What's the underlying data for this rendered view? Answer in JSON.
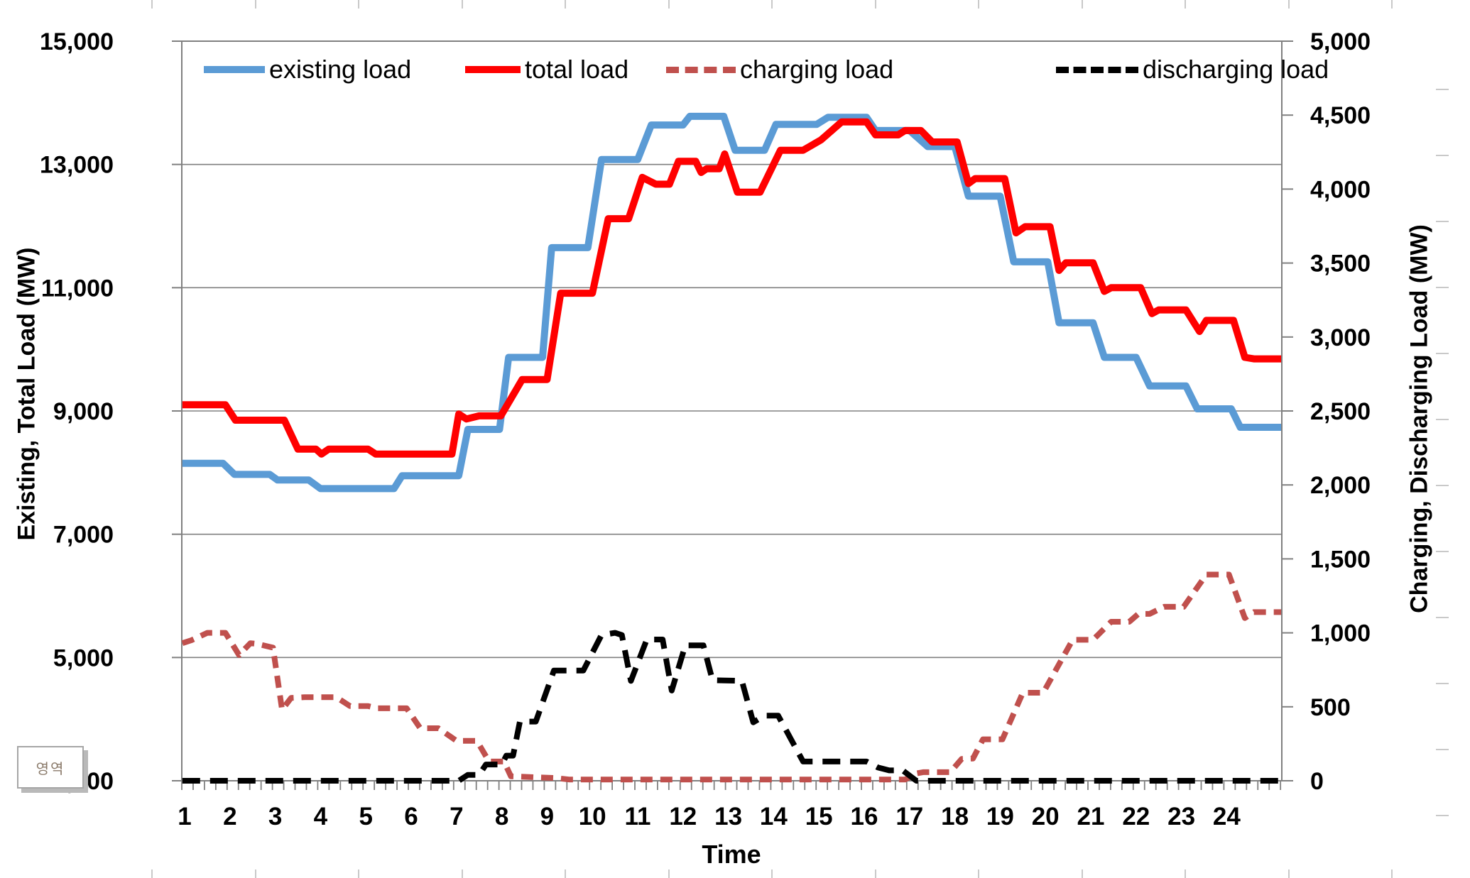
{
  "chart_data": {
    "type": "line",
    "title": "",
    "grid": "horizontal",
    "legend_position": "top-inside",
    "x_axis": {
      "label": "Time",
      "tick_labels": [
        "1",
        "2",
        "3",
        "4",
        "5",
        "6",
        "7",
        "8",
        "9",
        "10",
        "11",
        "12",
        "13",
        "14",
        "15",
        "16",
        "17",
        "18",
        "19",
        "20",
        "21",
        "22",
        "23",
        "24"
      ],
      "minor_ticks_per_hour": 4
    },
    "y_axis_left": {
      "label": "Existing, Total Load (MW)",
      "min": 3000,
      "max": 15000,
      "ticks": [
        {
          "v": 3000,
          "label": "3,000"
        },
        {
          "v": 5000,
          "label": "5,000"
        },
        {
          "v": 7000,
          "label": "7,000"
        },
        {
          "v": 9000,
          "label": "9,000"
        },
        {
          "v": 11000,
          "label": "11,000"
        },
        {
          "v": 13000,
          "label": "13,000"
        },
        {
          "v": 15000,
          "label": "15,000"
        }
      ]
    },
    "y_axis_right": {
      "label": "Charging, Discharging Load (MW)",
      "min": 0,
      "max": 5000,
      "ticks": [
        {
          "v": 0,
          "label": "0"
        },
        {
          "v": 500,
          "label": "500"
        },
        {
          "v": 1000,
          "label": "1,000"
        },
        {
          "v": 1500,
          "label": "1,500"
        },
        {
          "v": 2000,
          "label": "2,000"
        },
        {
          "v": 2500,
          "label": "2,500"
        },
        {
          "v": 3000,
          "label": "3,000"
        },
        {
          "v": 3500,
          "label": "3,500"
        },
        {
          "v": 4000,
          "label": "4,000"
        },
        {
          "v": 4500,
          "label": "4,500"
        },
        {
          "v": 5000,
          "label": "5,000"
        }
      ]
    },
    "series": [
      {
        "name": "existing load",
        "axis": "left",
        "style": "solid",
        "color": "#5b9bd5",
        "width": 10,
        "points": [
          [
            0.95,
            8150
          ],
          [
            1.85,
            8150
          ],
          [
            2.1,
            7970
          ],
          [
            2.88,
            7970
          ],
          [
            3.05,
            7880
          ],
          [
            3.74,
            7880
          ],
          [
            4.0,
            7740
          ],
          [
            5.62,
            7740
          ],
          [
            5.8,
            7950
          ],
          [
            7.05,
            7950
          ],
          [
            7.25,
            8700
          ],
          [
            7.95,
            8700
          ],
          [
            8.15,
            9870
          ],
          [
            8.9,
            9870
          ],
          [
            9.1,
            11650
          ],
          [
            9.9,
            11650
          ],
          [
            10.2,
            13080
          ],
          [
            11.0,
            13080
          ],
          [
            11.3,
            13640
          ],
          [
            12.0,
            13640
          ],
          [
            12.15,
            13780
          ],
          [
            12.9,
            13780
          ],
          [
            13.15,
            13230
          ],
          [
            13.8,
            13230
          ],
          [
            14.05,
            13650
          ],
          [
            14.95,
            13650
          ],
          [
            15.2,
            13765
          ],
          [
            16.05,
            13765
          ],
          [
            16.25,
            13550
          ],
          [
            17.0,
            13550
          ],
          [
            17.4,
            13290
          ],
          [
            18.0,
            13290
          ],
          [
            18.3,
            12485
          ],
          [
            19.0,
            12485
          ],
          [
            19.3,
            11420
          ],
          [
            20.05,
            11420
          ],
          [
            20.3,
            10430
          ],
          [
            21.05,
            10430
          ],
          [
            21.3,
            9870
          ],
          [
            22.0,
            9870
          ],
          [
            22.3,
            9405
          ],
          [
            23.1,
            9405
          ],
          [
            23.35,
            9035
          ],
          [
            24.1,
            9035
          ],
          [
            24.3,
            8735
          ],
          [
            25.2,
            8735
          ]
        ]
      },
      {
        "name": "total load",
        "axis": "left",
        "style": "solid",
        "color": "#ff0000",
        "width": 10,
        "points": [
          [
            0.95,
            9100
          ],
          [
            1.9,
            9100
          ],
          [
            2.12,
            8850
          ],
          [
            3.2,
            8850
          ],
          [
            3.5,
            8380
          ],
          [
            3.9,
            8380
          ],
          [
            4.02,
            8300
          ],
          [
            4.18,
            8380
          ],
          [
            5.05,
            8380
          ],
          [
            5.22,
            8300
          ],
          [
            6.9,
            8300
          ],
          [
            7.05,
            8950
          ],
          [
            7.22,
            8870
          ],
          [
            7.5,
            8920
          ],
          [
            7.98,
            8920
          ],
          [
            8.45,
            9510
          ],
          [
            9.0,
            9510
          ],
          [
            9.3,
            10910
          ],
          [
            10.0,
            10910
          ],
          [
            10.35,
            12120
          ],
          [
            10.8,
            12120
          ],
          [
            11.1,
            12790
          ],
          [
            11.4,
            12680
          ],
          [
            11.7,
            12680
          ],
          [
            11.9,
            13050
          ],
          [
            12.28,
            13050
          ],
          [
            12.4,
            12870
          ],
          [
            12.52,
            12930
          ],
          [
            12.8,
            12930
          ],
          [
            12.92,
            13170
          ],
          [
            13.2,
            12550
          ],
          [
            13.7,
            12550
          ],
          [
            14.15,
            13230
          ],
          [
            14.65,
            13230
          ],
          [
            15.05,
            13400
          ],
          [
            15.5,
            13690
          ],
          [
            16.05,
            13690
          ],
          [
            16.25,
            13480
          ],
          [
            16.75,
            13480
          ],
          [
            16.9,
            13550
          ],
          [
            17.25,
            13550
          ],
          [
            17.5,
            13365
          ],
          [
            18.05,
            13365
          ],
          [
            18.3,
            12690
          ],
          [
            18.45,
            12770
          ],
          [
            19.1,
            12770
          ],
          [
            19.35,
            11890
          ],
          [
            19.55,
            11990
          ],
          [
            20.1,
            11990
          ],
          [
            20.3,
            11280
          ],
          [
            20.45,
            11405
          ],
          [
            21.05,
            11405
          ],
          [
            21.3,
            10940
          ],
          [
            21.45,
            11000
          ],
          [
            22.1,
            11000
          ],
          [
            22.35,
            10580
          ],
          [
            22.5,
            10640
          ],
          [
            23.1,
            10640
          ],
          [
            23.4,
            10290
          ],
          [
            23.55,
            10470
          ],
          [
            24.15,
            10470
          ],
          [
            24.4,
            9870
          ],
          [
            24.6,
            9845
          ],
          [
            25.2,
            9845
          ]
        ]
      },
      {
        "name": "charging load",
        "axis": "right",
        "style": "dashed",
        "color": "#c0504d",
        "width": 8,
        "dash": "17 11",
        "points": [
          [
            0.95,
            930
          ],
          [
            1.15,
            950
          ],
          [
            1.5,
            1000
          ],
          [
            1.9,
            1000
          ],
          [
            2.2,
            850
          ],
          [
            2.45,
            930
          ],
          [
            2.6,
            925
          ],
          [
            2.95,
            900
          ],
          [
            3.15,
            480
          ],
          [
            3.35,
            560
          ],
          [
            3.65,
            565
          ],
          [
            4.35,
            565
          ],
          [
            4.65,
            505
          ],
          [
            5.05,
            505
          ],
          [
            5.25,
            490
          ],
          [
            5.9,
            490
          ],
          [
            6.2,
            355
          ],
          [
            6.6,
            355
          ],
          [
            7.0,
            270
          ],
          [
            7.45,
            270
          ],
          [
            7.72,
            130
          ],
          [
            8.05,
            130
          ],
          [
            8.2,
            30
          ],
          [
            9.2,
            18
          ],
          [
            9.5,
            8
          ],
          [
            16.9,
            8
          ],
          [
            17.15,
            50
          ],
          [
            17.3,
            58
          ],
          [
            17.9,
            58
          ],
          [
            18.15,
            148
          ],
          [
            18.4,
            150
          ],
          [
            18.62,
            280
          ],
          [
            19.05,
            280
          ],
          [
            19.5,
            595
          ],
          [
            19.95,
            595
          ],
          [
            20.6,
            953
          ],
          [
            21.05,
            953
          ],
          [
            21.45,
            1075
          ],
          [
            21.85,
            1075
          ],
          [
            22.05,
            1128
          ],
          [
            22.3,
            1128
          ],
          [
            22.62,
            1176
          ],
          [
            23.05,
            1176
          ],
          [
            23.55,
            1394
          ],
          [
            24.05,
            1394
          ],
          [
            24.4,
            1100
          ],
          [
            24.6,
            1140
          ],
          [
            25.2,
            1140
          ]
        ]
      },
      {
        "name": "discharging load",
        "axis": "right",
        "style": "dashed",
        "color": "#000000",
        "width": 8,
        "dash": "25 14",
        "points": [
          [
            0.95,
            0
          ],
          [
            7.05,
            0
          ],
          [
            7.25,
            40
          ],
          [
            7.5,
            40
          ],
          [
            7.65,
            110
          ],
          [
            8.0,
            110
          ],
          [
            8.1,
            170
          ],
          [
            8.25,
            170
          ],
          [
            8.4,
            400
          ],
          [
            8.75,
            400
          ],
          [
            9.15,
            745
          ],
          [
            9.8,
            745
          ],
          [
            10.2,
            985
          ],
          [
            10.5,
            1000
          ],
          [
            10.65,
            985
          ],
          [
            10.85,
            675
          ],
          [
            11.2,
            955
          ],
          [
            11.55,
            955
          ],
          [
            11.75,
            610
          ],
          [
            12.05,
            915
          ],
          [
            12.45,
            915
          ],
          [
            12.65,
            680
          ],
          [
            13.3,
            675
          ],
          [
            13.55,
            395
          ],
          [
            13.8,
            440
          ],
          [
            14.1,
            440
          ],
          [
            14.65,
            130
          ],
          [
            16.05,
            130
          ],
          [
            16.3,
            90
          ],
          [
            16.55,
            70
          ],
          [
            16.85,
            70
          ],
          [
            17.15,
            0
          ],
          [
            25.2,
            0
          ]
        ]
      }
    ],
    "colors": {
      "gridline": "#808080",
      "frame": "#808080",
      "tick_text": "#000000",
      "worksheet_artifact": "#c9c9c9"
    }
  },
  "annotations": {
    "area_box_label": "영역"
  }
}
